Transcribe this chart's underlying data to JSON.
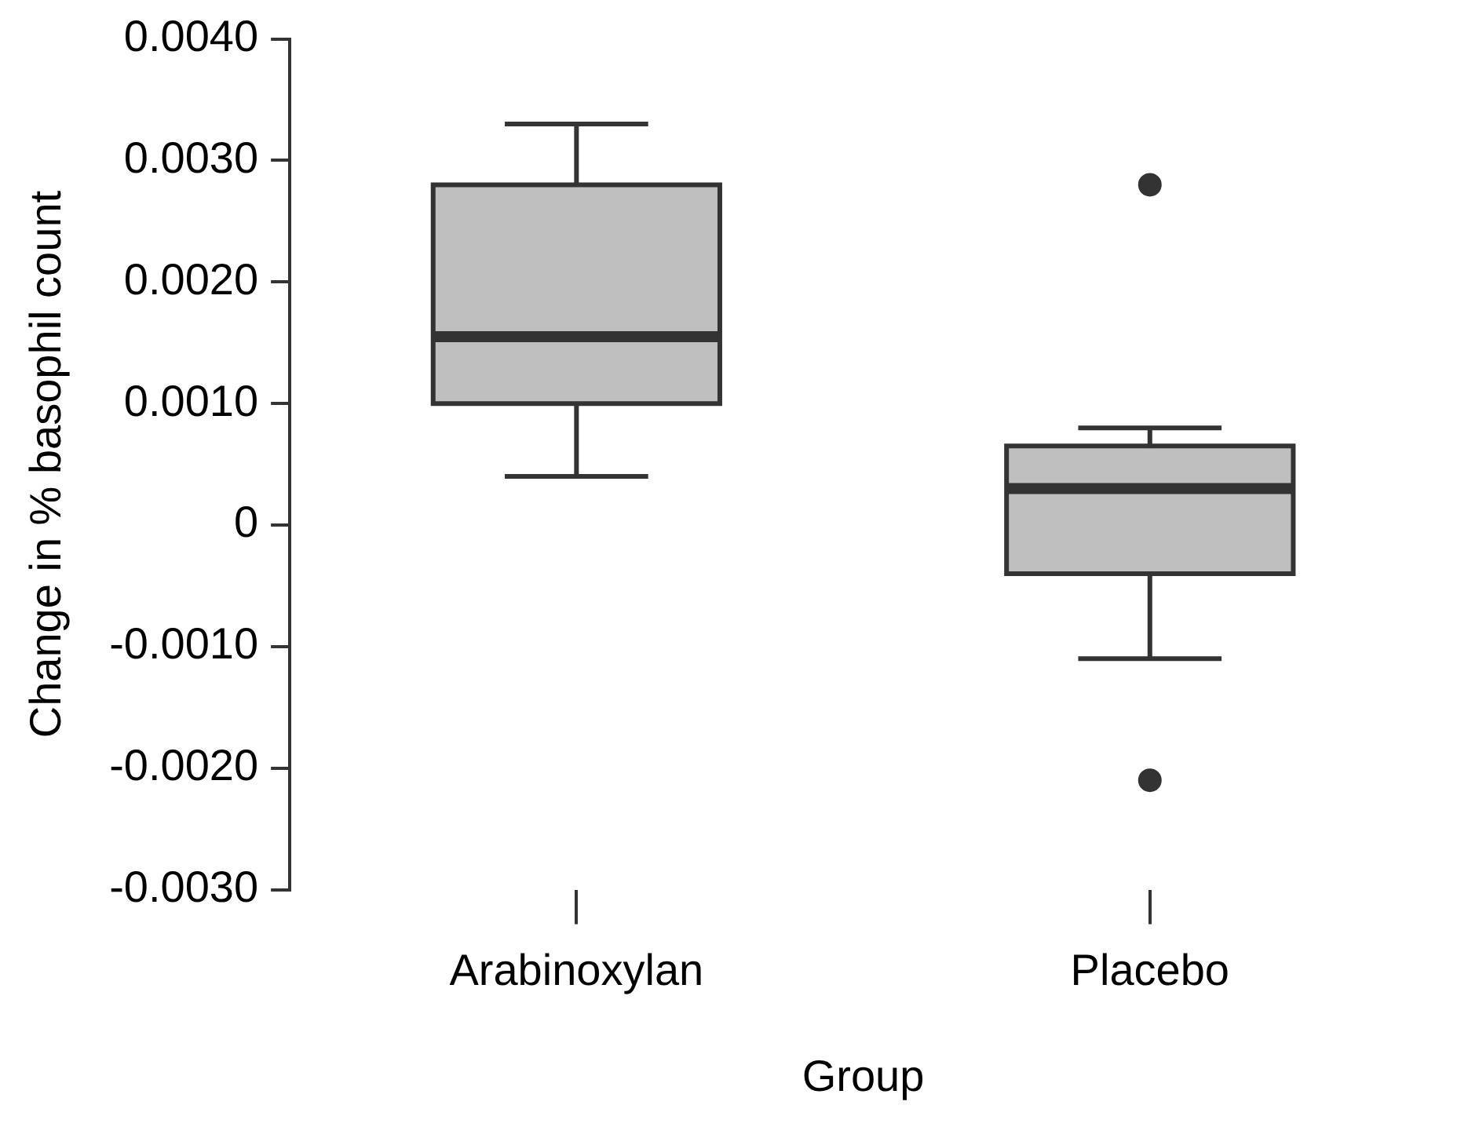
{
  "chart_data": {
    "type": "box",
    "xlabel": "Group",
    "ylabel": "Change in % basophil count",
    "categories": [
      "Arabinoxylan",
      "Placebo"
    ],
    "ylim": [
      -0.003,
      0.004
    ],
    "yticks": [
      {
        "value": 0.004,
        "label": "0.0040"
      },
      {
        "value": 0.003,
        "label": "0.0030"
      },
      {
        "value": 0.002,
        "label": "0.0020"
      },
      {
        "value": 0.001,
        "label": "0.0010"
      },
      0,
      {
        "value": -0.001,
        "label": "-0.0010"
      },
      {
        "value": -0.002,
        "label": "-0.0020"
      },
      {
        "value": -0.003,
        "label": "-0.0030"
      }
    ],
    "grid": false,
    "legend": false,
    "series": [
      {
        "color": "#bfbfbf",
        "boxes": [
          {
            "low": 0.0004,
            "q1": 0.001,
            "median": 0.00155,
            "q3": 0.0028,
            "high": 0.0033
          },
          {
            "low": -0.0011,
            "q1": -0.0004,
            "median": 0.0003,
            "q3": 0.00065,
            "high": 0.0008,
            "outliers": [
              0.0028,
              -0.0021
            ]
          }
        ]
      }
    ]
  }
}
